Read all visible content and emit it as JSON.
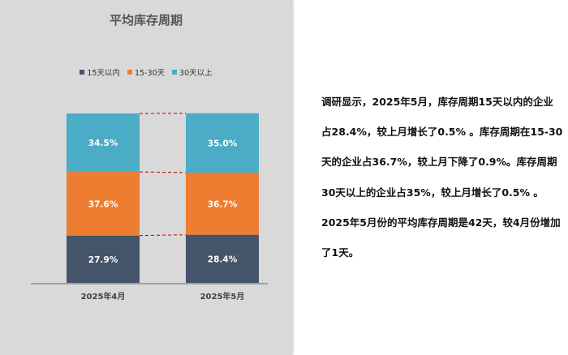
{
  "chart_data": {
    "type": "bar",
    "stacked": true,
    "title": "平均库存周期",
    "categories": [
      "2025年4月",
      "2025年5月"
    ],
    "series": [
      {
        "name": "15天以内",
        "color": "#44546a",
        "values": [
          27.9,
          28.4
        ],
        "labels": [
          "27.9%",
          "28.4%"
        ]
      },
      {
        "name": "15-30天",
        "color": "#ed7d31",
        "values": [
          37.6,
          36.7
        ],
        "labels": [
          "37.6%",
          "36.7%"
        ]
      },
      {
        "name": "30天以上",
        "color": "#4bacc6",
        "values": [
          34.5,
          35.0
        ],
        "labels": [
          "34.5%",
          "35.0%"
        ]
      }
    ],
    "ylim": [
      0,
      100
    ],
    "legend_position": "top",
    "connector_lines": true,
    "connector_color": "#c00000"
  },
  "text": {
    "lines": [
      "调研显示，2025年5月，库存周期15天以内的企业",
      "占28.4%，较上月增长了0.5% 。库存周期在15-30",
      "天的企业占36.7%，较上月下降了0.9%。库存周期",
      "30天以上的企业占35%，较上月增长了0.5% 。",
      "2025年5月份的平均库存周期是42天，较4月份增加",
      "了1天。"
    ]
  }
}
